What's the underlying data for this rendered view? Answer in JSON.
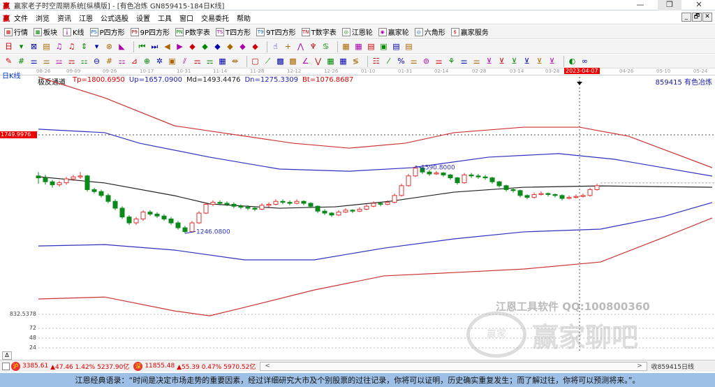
{
  "window": {
    "title": "赢家老子时空周期系统[纵横版] - [有色冶炼  GN859415-184日K线]",
    "minimize": "—",
    "restore": "❐",
    "close": "✕"
  },
  "menu": {
    "logo": "赢",
    "items": [
      "文件",
      "浏览",
      "资讯",
      "江恩",
      "公式选股",
      "设置",
      "工具",
      "窗口",
      "交易委托",
      "帮助"
    ],
    "mdi": [
      "_",
      "🗗",
      "✕"
    ]
  },
  "toolbar1": [
    {
      "icon": "quote-grid-icon",
      "glyph": "▦",
      "label": "行情"
    },
    {
      "icon": "sector-icon",
      "glyph": "▩",
      "label": "板块"
    },
    {
      "icon": "kline-icon",
      "glyph": "╽",
      "label": "K线"
    },
    {
      "icon": "p-square-icon",
      "glyph": "PS",
      "label": "P四方形"
    },
    {
      "icon": "9p-square-icon",
      "glyph": "P9",
      "label": "9P四方形"
    },
    {
      "icon": "p-number-icon",
      "glyph": "PN",
      "label": "P数字表"
    },
    {
      "icon": "t-square-icon",
      "glyph": "TS",
      "label": "T四方形"
    },
    {
      "icon": "9t-square-icon",
      "glyph": "T9",
      "label": "9T四方形"
    },
    {
      "icon": "t-number-icon",
      "glyph": "TN",
      "label": "T数字表"
    },
    {
      "icon": "gann-wheel-icon",
      "glyph": "◎",
      "label": "江恩轮"
    },
    {
      "icon": "winner-wheel-icon",
      "glyph": "◉",
      "label": "赢家轮"
    },
    {
      "icon": "hexagon-icon",
      "glyph": "◎",
      "label": "六角形"
    },
    {
      "icon": "dollar-icon",
      "glyph": "$",
      "label": "赢家服务"
    }
  ],
  "toolbar2": [
    "日",
    "▾",
    "⊠",
    "▤",
    "♫",
    "♫",
    "⇕",
    "▾",
    "⊗",
    "◣",
    "|",
    "⏮",
    "⏭",
    "◀",
    "▶",
    "◆",
    "◆",
    "◆",
    "◆",
    "◆",
    "◆",
    "|",
    "☝",
    "+",
    "⋀",
    "♆",
    "♋",
    "|",
    "▦",
    "▦",
    "▤",
    "▣",
    "▤",
    "▤"
  ],
  "toolbar3": [
    "✎",
    "#",
    "⚌",
    "⚌",
    "⚍",
    "⚎",
    "⚏",
    "⊖",
    "#",
    "⚏",
    "⊿",
    "⊕",
    "✲",
    "▣",
    "⫽",
    "⚎",
    "⚎",
    "▦",
    "⇹",
    "|",
    "▢",
    "⟋",
    "▩",
    "▩",
    "∠",
    "⋁",
    "▦",
    "▦",
    "≶",
    "|",
    "☷",
    "⁄",
    "%",
    "⚌",
    "⊜",
    "⚌",
    "⚘",
    "⚌",
    "⚌",
    "⊻",
    "⊻",
    "⊻",
    "⊻",
    "⊻",
    "⊻",
    "|",
    "◐",
    "∞"
  ],
  "axis": {
    "dates": [
      "08-26",
      "09-09",
      "09-26",
      "10-17",
      "10-31",
      "11-14",
      "11-28",
      "12-12",
      "12-26",
      "01-10",
      "01-31",
      "02-14",
      "02-28",
      "03-14",
      "03-28",
      "04-26",
      "05-10",
      "05-24"
    ],
    "cursor_date": "2023-04-07"
  },
  "chart_header": {
    "period": "日K线",
    "indicator": "极反通道",
    "tp": "Tp=1800.6950",
    "up": "Up=1657.0900",
    "md": "Md=1493.4476",
    "dn": "Dn=1275.3309",
    "bt": "Bt=1076.8687",
    "stock": "859415 有色冶炼"
  },
  "price_scale": {
    "cursor_price": "1749.9976",
    "low_label": "832.5378",
    "vol_ticks": [
      "72",
      "48",
      "24"
    ]
  },
  "annotations": {
    "low": "1246.0800",
    "high": "1590.8000"
  },
  "colors": {
    "up": "#e03030",
    "down": "#0a8a1a",
    "upper": "#cc3333",
    "band": "#3030c0",
    "mid": "#222222"
  },
  "chart_data": {
    "type": "candlestick",
    "x_unit": "bar",
    "ohlc": [
      [
        1540,
        1560,
        1500,
        1530
      ],
      [
        1530,
        1545,
        1495,
        1510
      ],
      [
        1510,
        1520,
        1480,
        1495
      ],
      [
        1495,
        1515,
        1485,
        1505
      ],
      [
        1505,
        1535,
        1495,
        1525
      ],
      [
        1525,
        1545,
        1515,
        1535
      ],
      [
        1535,
        1560,
        1525,
        1540
      ],
      [
        1540,
        1545,
        1460,
        1470
      ],
      [
        1470,
        1480,
        1450,
        1460
      ],
      [
        1460,
        1470,
        1430,
        1440
      ],
      [
        1440,
        1450,
        1400,
        1410
      ],
      [
        1410,
        1420,
        1365,
        1375
      ],
      [
        1375,
        1385,
        1320,
        1330
      ],
      [
        1330,
        1340,
        1290,
        1300
      ],
      [
        1300,
        1330,
        1290,
        1320
      ],
      [
        1320,
        1365,
        1310,
        1355
      ],
      [
        1355,
        1365,
        1335,
        1345
      ],
      [
        1345,
        1355,
        1325,
        1335
      ],
      [
        1335,
        1345,
        1310,
        1320
      ],
      [
        1320,
        1330,
        1290,
        1300
      ],
      [
        1300,
        1310,
        1265,
        1275
      ],
      [
        1275,
        1285,
        1246,
        1255
      ],
      [
        1255,
        1310,
        1250,
        1300
      ],
      [
        1300,
        1360,
        1295,
        1350
      ],
      [
        1350,
        1405,
        1345,
        1395
      ],
      [
        1395,
        1415,
        1385,
        1405
      ],
      [
        1405,
        1415,
        1390,
        1400
      ],
      [
        1400,
        1410,
        1385,
        1395
      ],
      [
        1395,
        1405,
        1375,
        1385
      ],
      [
        1385,
        1395,
        1370,
        1380
      ],
      [
        1380,
        1390,
        1365,
        1375
      ],
      [
        1375,
        1385,
        1360,
        1370
      ],
      [
        1370,
        1400,
        1365,
        1390
      ],
      [
        1390,
        1405,
        1380,
        1395
      ],
      [
        1395,
        1420,
        1390,
        1410
      ],
      [
        1410,
        1420,
        1395,
        1405
      ],
      [
        1405,
        1415,
        1390,
        1400
      ],
      [
        1400,
        1420,
        1395,
        1410
      ],
      [
        1410,
        1415,
        1390,
        1400
      ],
      [
        1400,
        1405,
        1375,
        1385
      ],
      [
        1385,
        1390,
        1350,
        1360
      ],
      [
        1360,
        1370,
        1340,
        1350
      ],
      [
        1350,
        1355,
        1330,
        1340
      ],
      [
        1340,
        1365,
        1335,
        1355
      ],
      [
        1355,
        1375,
        1350,
        1365
      ],
      [
        1365,
        1370,
        1350,
        1360
      ],
      [
        1360,
        1380,
        1355,
        1370
      ],
      [
        1370,
        1395,
        1365,
        1385
      ],
      [
        1385,
        1410,
        1380,
        1400
      ],
      [
        1400,
        1405,
        1385,
        1395
      ],
      [
        1395,
        1415,
        1390,
        1405
      ],
      [
        1405,
        1450,
        1400,
        1440
      ],
      [
        1440,
        1500,
        1435,
        1490
      ],
      [
        1490,
        1550,
        1485,
        1540
      ],
      [
        1540,
        1591,
        1535,
        1580
      ],
      [
        1580,
        1585,
        1550,
        1560
      ],
      [
        1560,
        1570,
        1540,
        1550
      ],
      [
        1550,
        1565,
        1545,
        1555
      ],
      [
        1555,
        1560,
        1535,
        1545
      ],
      [
        1545,
        1550,
        1520,
        1530
      ],
      [
        1530,
        1535,
        1495,
        1505
      ],
      [
        1505,
        1555,
        1500,
        1545
      ],
      [
        1545,
        1555,
        1530,
        1540
      ],
      [
        1540,
        1550,
        1525,
        1535
      ],
      [
        1535,
        1545,
        1520,
        1530
      ],
      [
        1530,
        1535,
        1500,
        1510
      ],
      [
        1510,
        1515,
        1480,
        1490
      ],
      [
        1490,
        1495,
        1460,
        1470
      ],
      [
        1470,
        1480,
        1455,
        1465
      ],
      [
        1465,
        1470,
        1430,
        1440
      ],
      [
        1440,
        1445,
        1420,
        1430
      ],
      [
        1430,
        1455,
        1425,
        1445
      ],
      [
        1445,
        1460,
        1440,
        1450
      ],
      [
        1450,
        1455,
        1435,
        1445
      ],
      [
        1445,
        1450,
        1430,
        1440
      ],
      [
        1440,
        1445,
        1415,
        1425
      ],
      [
        1425,
        1440,
        1420,
        1430
      ],
      [
        1430,
        1445,
        1425,
        1435
      ],
      [
        1435,
        1450,
        1430,
        1440
      ],
      [
        1440,
        1480,
        1435,
        1470
      ],
      [
        1470,
        1500,
        1465,
        1490
      ]
    ],
    "bands": [
      {
        "name": "Tp",
        "color": "#cc3333",
        "points": [
          [
            0,
            2046
          ],
          [
            9.5,
            1939
          ],
          [
            19.5,
            1796
          ],
          [
            36.5,
            1707
          ],
          [
            44.5,
            1682
          ],
          [
            52.5,
            1707
          ],
          [
            59.5,
            1761
          ],
          [
            69.5,
            1789
          ],
          [
            77.5,
            1789
          ],
          [
            84.5,
            1743
          ],
          [
            96.5,
            1582
          ]
        ]
      },
      {
        "name": "Up",
        "color": "#3030c0",
        "points": [
          [
            0,
            1779
          ],
          [
            9.5,
            1761
          ],
          [
            14.5,
            1707
          ],
          [
            24.5,
            1636
          ],
          [
            34.5,
            1575
          ],
          [
            44.5,
            1564
          ],
          [
            53.5,
            1582
          ],
          [
            64.5,
            1636
          ],
          [
            74.5,
            1654
          ],
          [
            82.5,
            1625
          ],
          [
            96.5,
            1539
          ]
        ]
      },
      {
        "name": "Md",
        "color": "#222222",
        "points": [
          [
            0,
            1536
          ],
          [
            9.5,
            1504
          ],
          [
            19.5,
            1439
          ],
          [
            24.5,
            1397
          ],
          [
            34.5,
            1375
          ],
          [
            42.5,
            1382
          ],
          [
            50.5,
            1411
          ],
          [
            59.5,
            1457
          ],
          [
            69.5,
            1482
          ],
          [
            80.5,
            1489
          ],
          [
            96.5,
            1482
          ]
        ]
      },
      {
        "name": "Dn",
        "color": "#3030c0",
        "points": [
          [
            0,
            1182
          ],
          [
            9.5,
            1189
          ],
          [
            19.5,
            1161
          ],
          [
            29.5,
            1111
          ],
          [
            39.5,
            1111
          ],
          [
            49.5,
            1171
          ],
          [
            59.5,
            1218
          ],
          [
            69.5,
            1254
          ],
          [
            80.5,
            1268
          ],
          [
            89.5,
            1332
          ],
          [
            96.5,
            1404
          ]
        ]
      },
      {
        "name": "Bt",
        "color": "#cc3333",
        "points": [
          [
            0,
            911
          ],
          [
            9.5,
            921
          ],
          [
            19.5,
            850
          ],
          [
            24.5,
            825
          ],
          [
            29.5,
            868
          ],
          [
            39.5,
            957
          ],
          [
            49.5,
            1029
          ],
          [
            59.5,
            1046
          ],
          [
            69.5,
            1064
          ],
          [
            80.5,
            1100
          ],
          [
            89.5,
            1225
          ],
          [
            96.5,
            1325
          ]
        ]
      }
    ]
  },
  "watermark": {
    "line1": "江恩工具软件  QQ:100800360",
    "line2": "赢家聊吧",
    "logo": "赢家"
  },
  "status": {
    "sh_badge": "沪",
    "sh": "3385.61",
    "sh_chg": "▲47.46 1.42% 5237.90亿",
    "sz_badge": "深",
    "sz": "11855.48",
    "sz_chg": "▲55.39 0.47% 5970.52亿",
    "scroll_left": "<",
    "scroll_right": ">",
    "right": "收859415日线",
    "tri": "Δ"
  },
  "quote": "江恩经典语录：“时间是决定市场走势的重要因素，经过详细研究大市及个别股票的过往记录，你将可以证明，历史确实重复发生；而了解过往，你将可以预测将来。”。"
}
